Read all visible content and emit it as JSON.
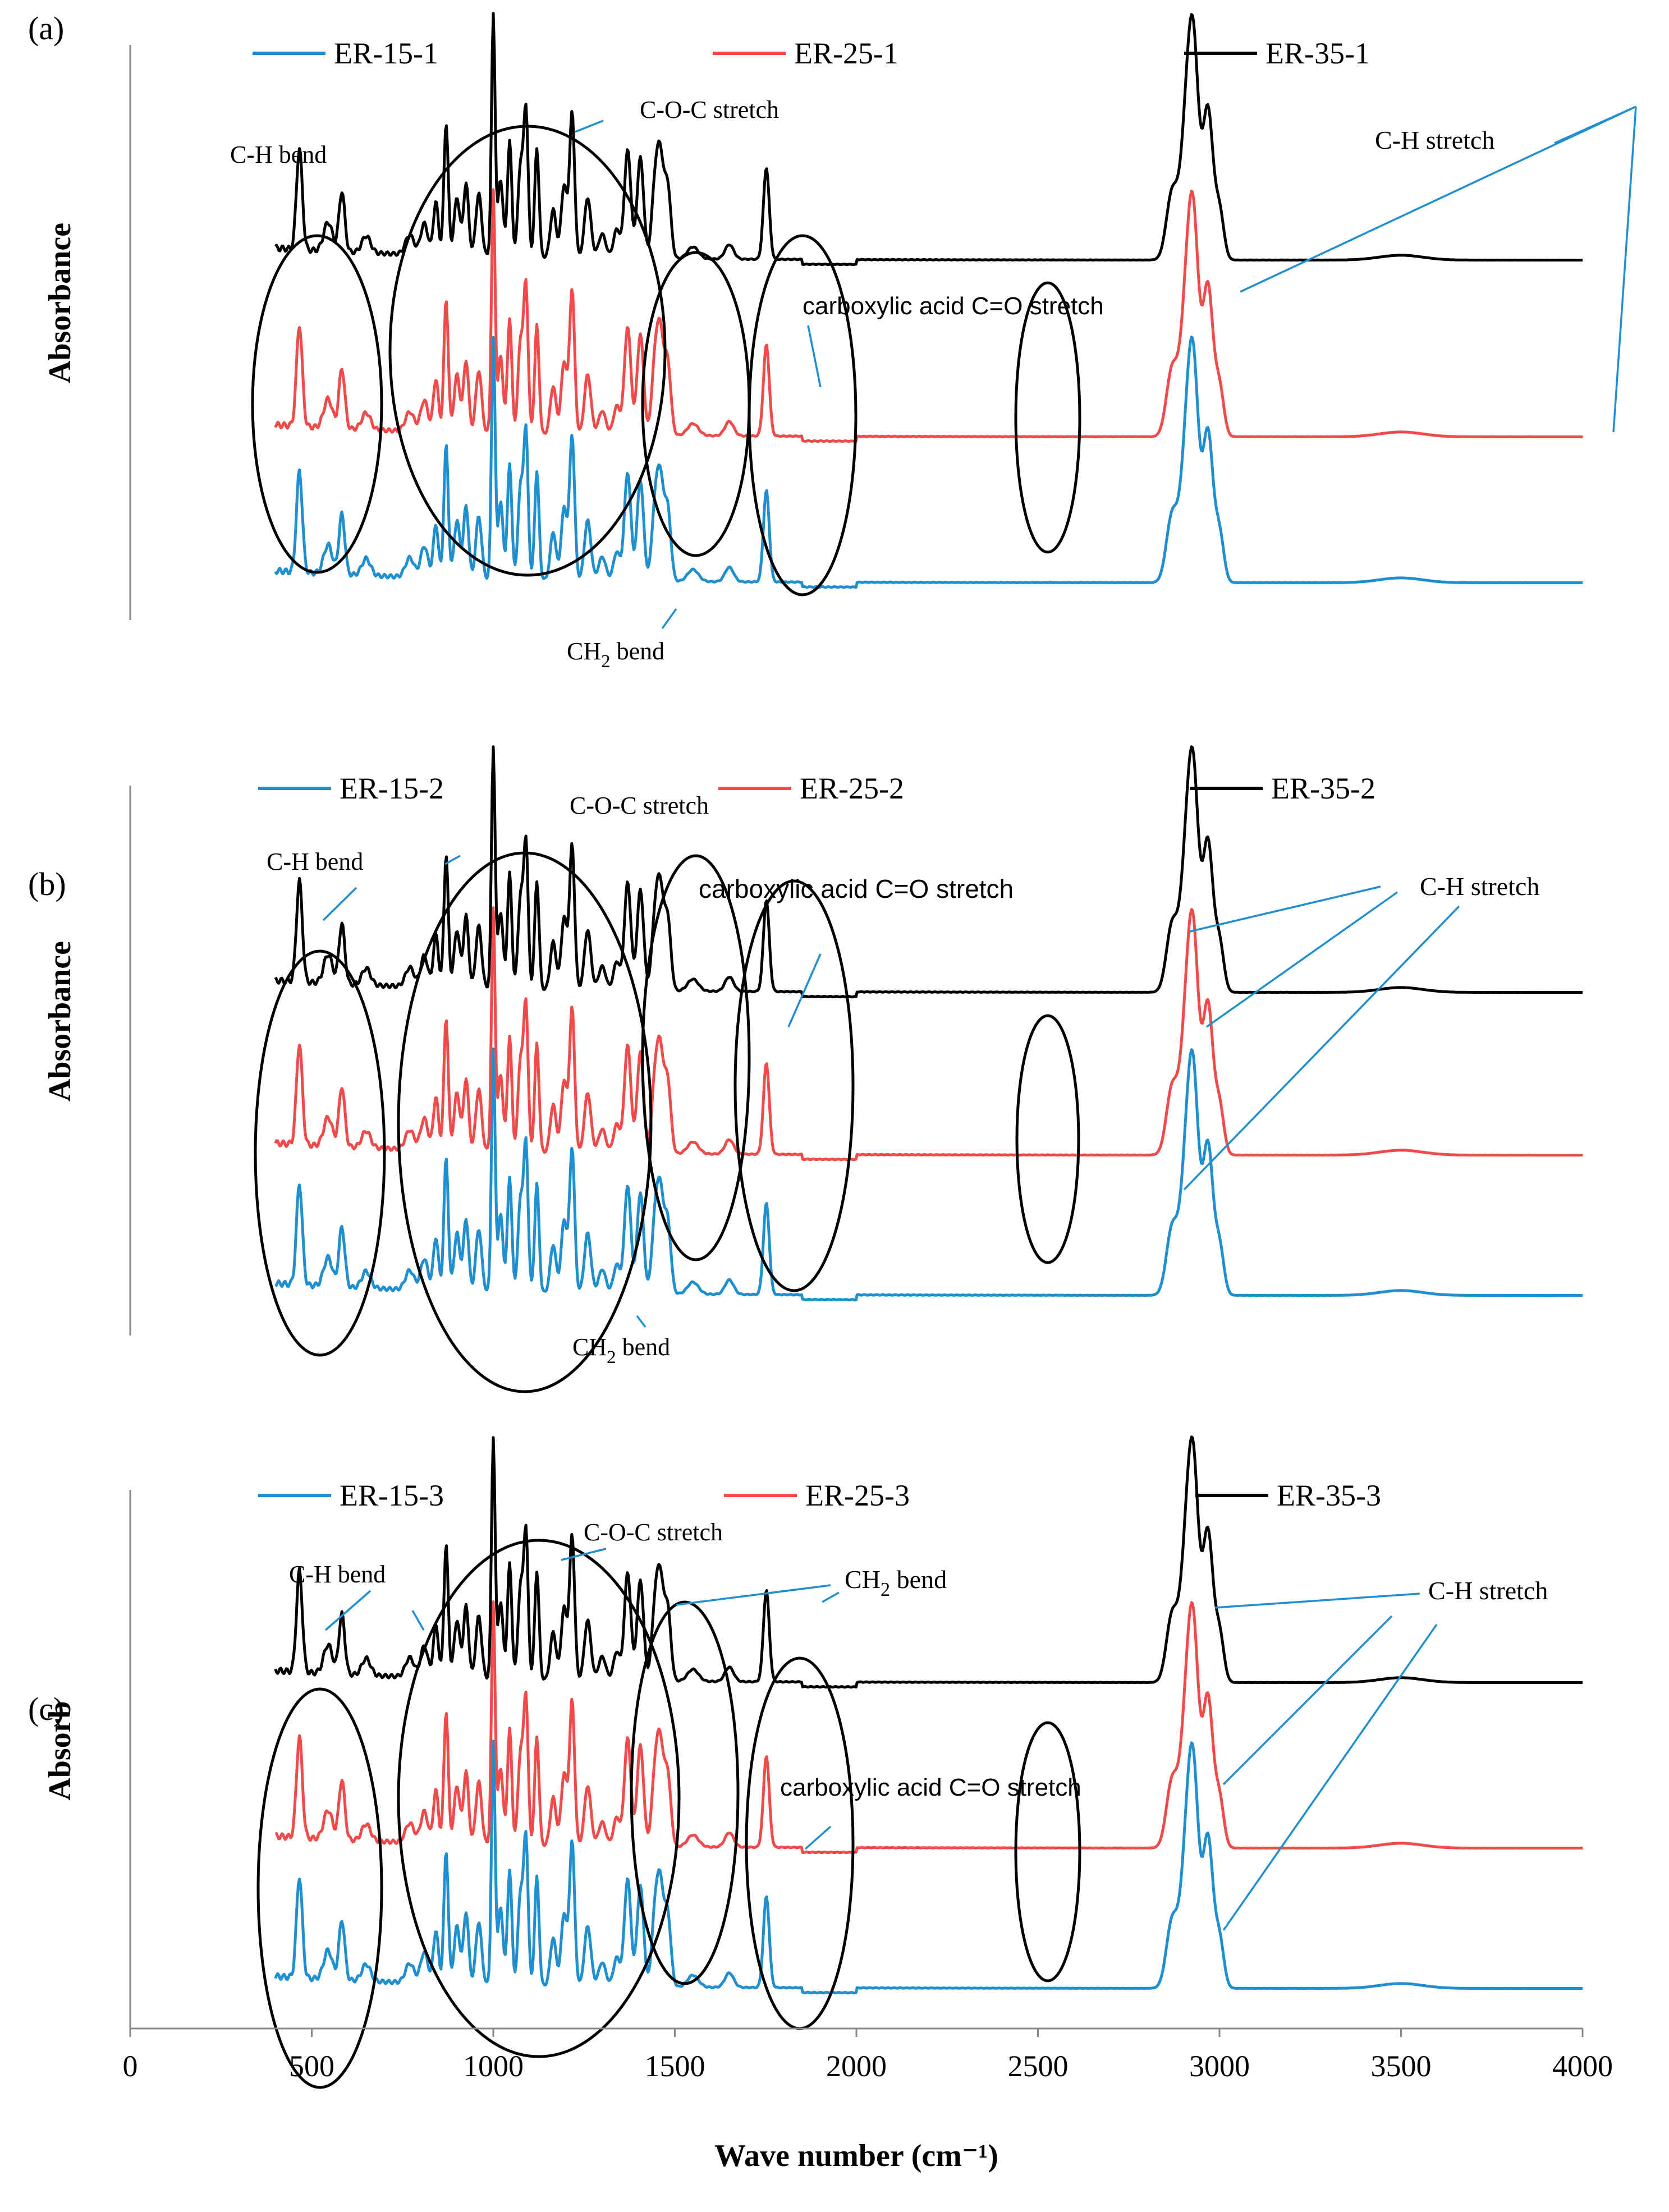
{
  "figure": {
    "x_axis_label": "Wave number (cm⁻¹)",
    "x_ticks": [
      "0",
      "500",
      "1000",
      "1500",
      "2000",
      "2500",
      "3000",
      "3500",
      "4000"
    ]
  },
  "chart_data": [
    {
      "type": "line",
      "panel_label": "(a)",
      "ylabel": "Absorbance",
      "xlim": [
        0,
        4000
      ],
      "x_range_measured": [
        400,
        4000
      ],
      "legend_position": "top",
      "series": [
        {
          "name": "ER-15-1",
          "color": "#1f8fd0"
        },
        {
          "name": "ER-25-1",
          "color": "#f04a4a"
        },
        {
          "name": "ER-35-1",
          "color": "#000000"
        }
      ],
      "annotations": [
        {
          "text": "C-H bend"
        },
        {
          "text": "C-O-C stretch"
        },
        {
          "text": "C-H stretch"
        },
        {
          "text": "carboxylic acid C=O stretch"
        },
        {
          "text": "CH₂ bend"
        }
      ]
    },
    {
      "type": "line",
      "panel_label": "(b)",
      "ylabel": "Absorbance",
      "xlim": [
        0,
        4000
      ],
      "x_range_measured": [
        400,
        4000
      ],
      "legend_position": "top",
      "series": [
        {
          "name": "ER-15-2",
          "color": "#1f8fd0"
        },
        {
          "name": "ER-25-2",
          "color": "#f04a4a"
        },
        {
          "name": "ER-35-2",
          "color": "#000000"
        }
      ],
      "annotations": [
        {
          "text": "C-H bend"
        },
        {
          "text": "C-O-C stretch"
        },
        {
          "text": "carboxylic acid C=O stretch"
        },
        {
          "text": "C-H stretch"
        },
        {
          "text": "CH₂ bend"
        }
      ]
    },
    {
      "type": "line",
      "panel_label": "(c)",
      "ylabel": "Absorb",
      "xlim": [
        0,
        4000
      ],
      "x_range_measured": [
        400,
        4000
      ],
      "legend_position": "top",
      "series": [
        {
          "name": "ER-15-3",
          "color": "#1f8fd0"
        },
        {
          "name": "ER-25-3",
          "color": "#f04a4a"
        },
        {
          "name": "ER-35-3",
          "color": "#000000"
        }
      ],
      "annotations": [
        {
          "text": "C-H bend"
        },
        {
          "text": "C-O-C stretch"
        },
        {
          "text": "CH₂ bend"
        },
        {
          "text": "C-H stretch"
        },
        {
          "text": "carboxylic acid C=O stretch"
        }
      ],
      "peaks_cm-1": [
        466,
        583,
        842,
        870,
        1000,
        1045,
        1090,
        1120,
        1217,
        1370,
        1460,
        1752,
        2880,
        2925,
        2965
      ]
    }
  ]
}
